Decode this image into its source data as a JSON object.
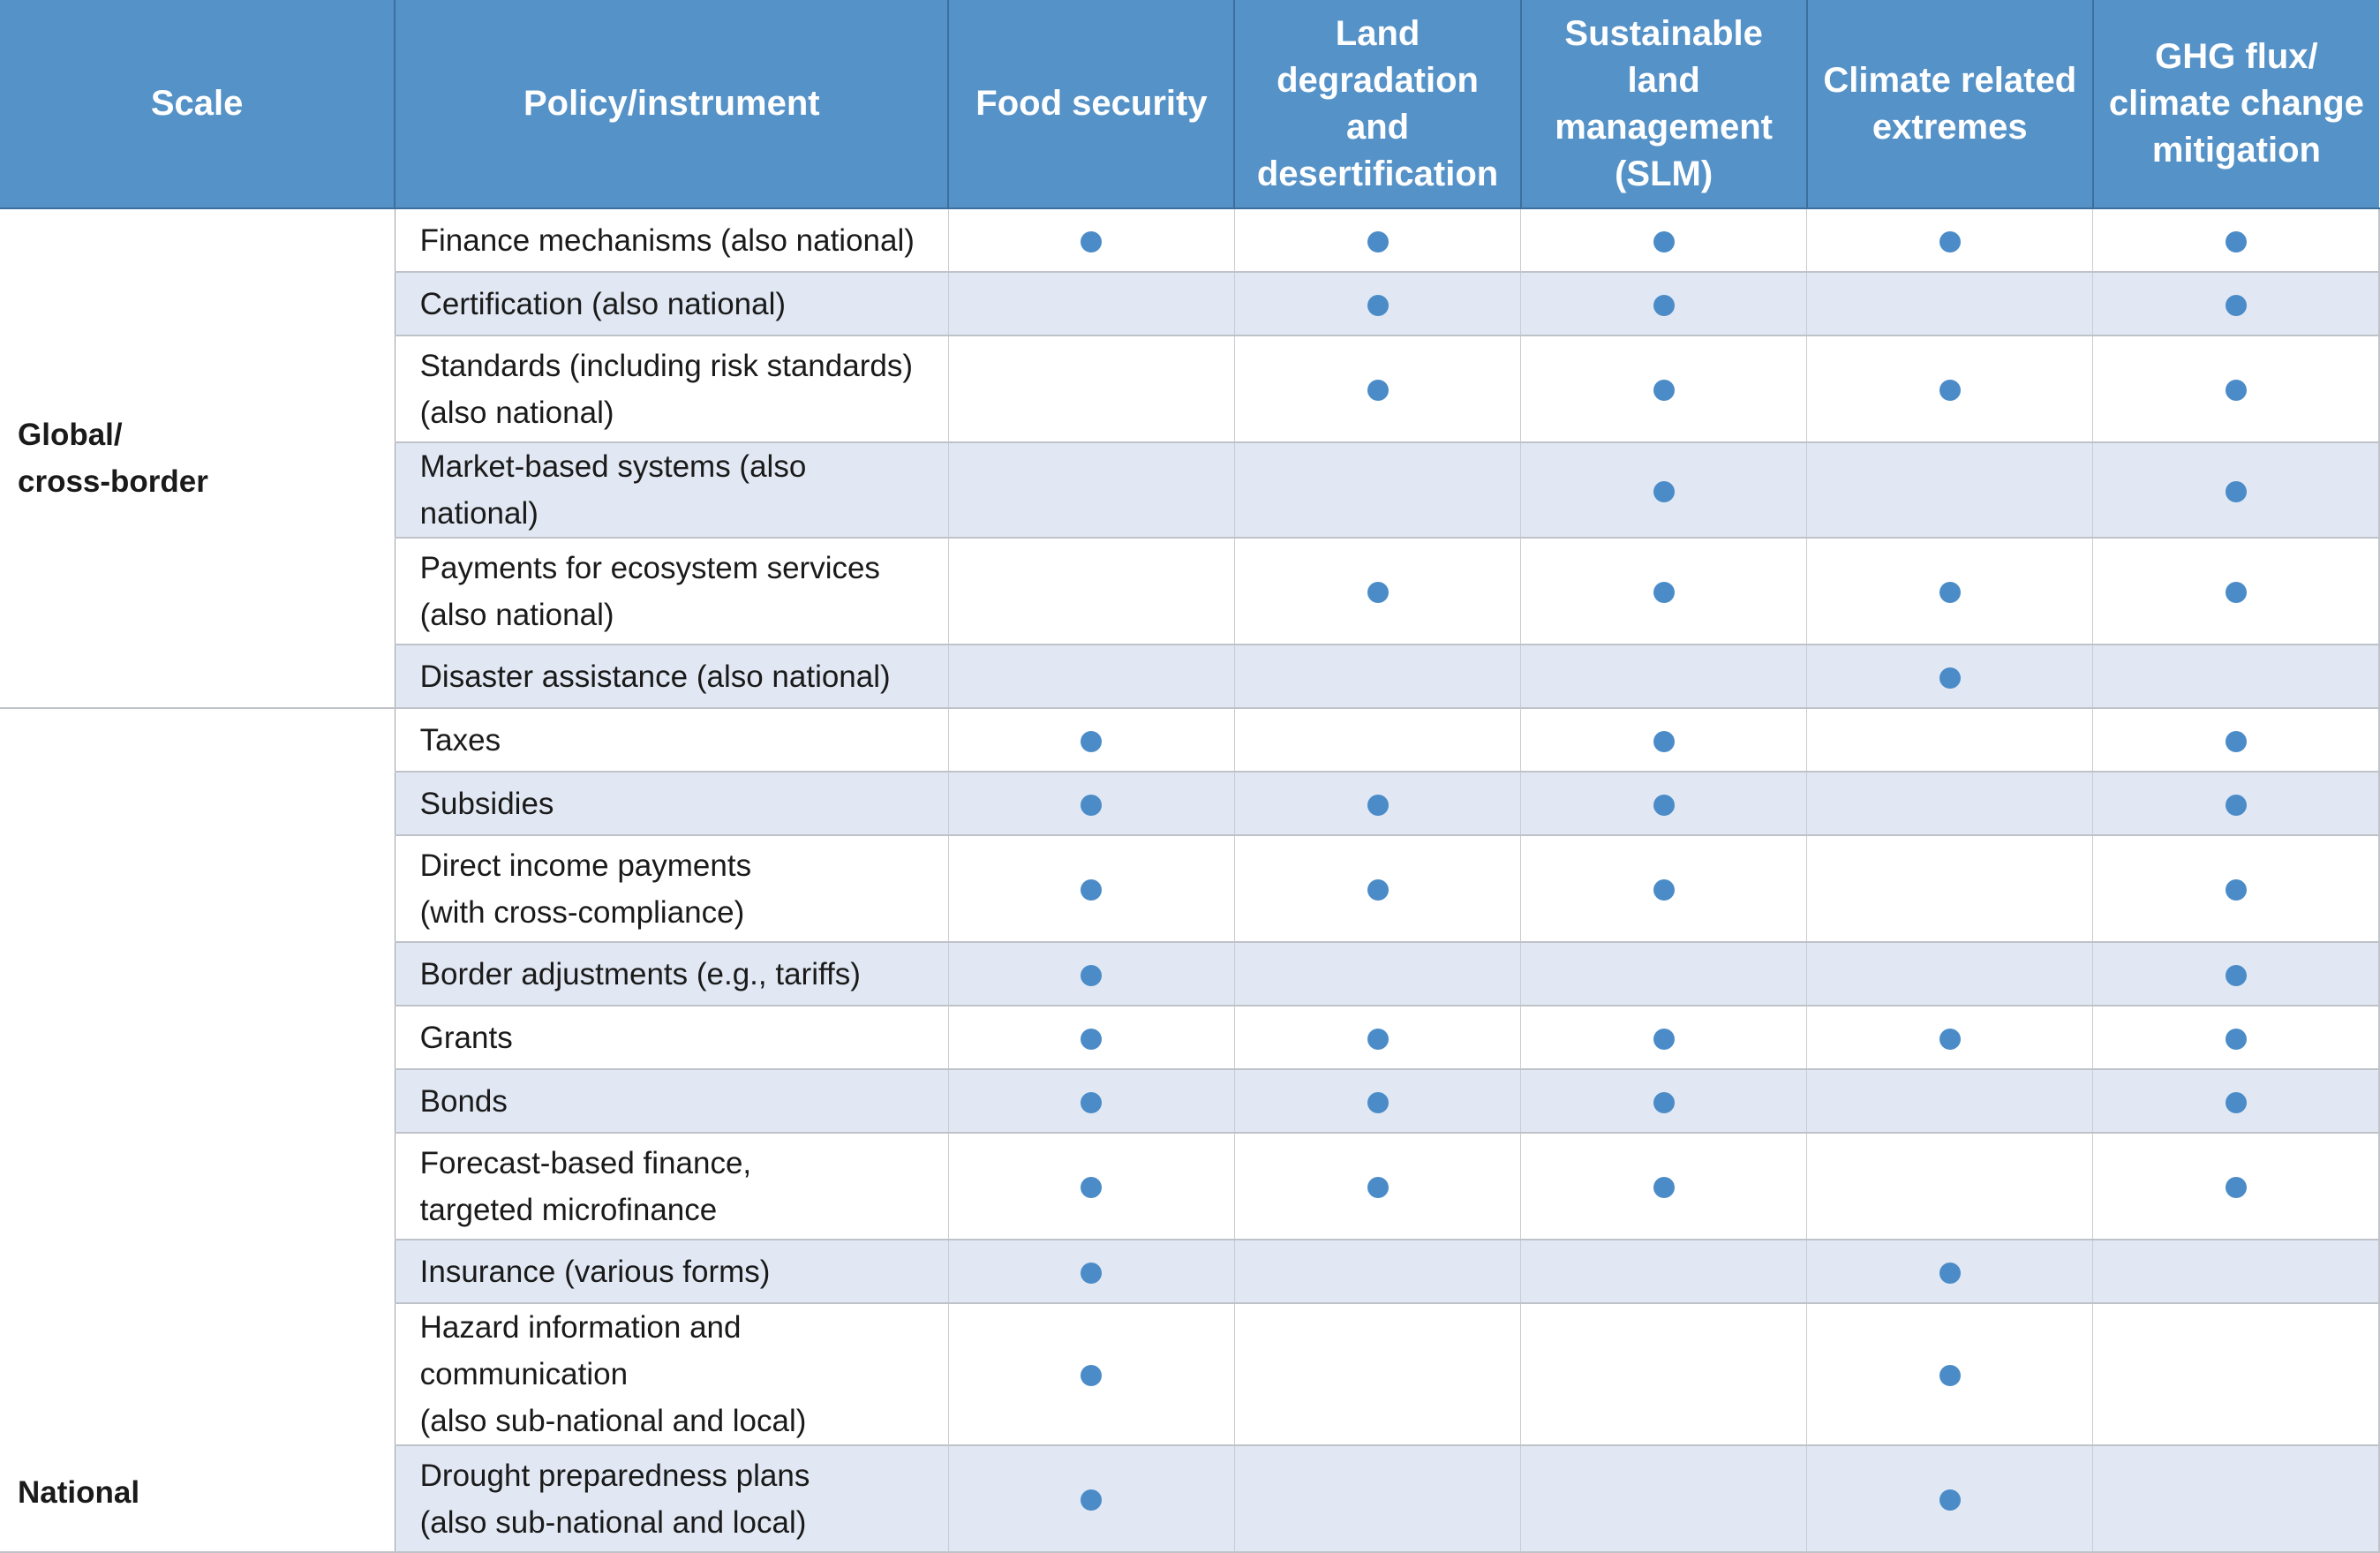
{
  "headers": {
    "scale": "Scale",
    "policy": "Policy/instrument",
    "c1": "Food security",
    "c2": "Land\ndegradation\nand\ndesertification",
    "c3": "Sustainable\nland\nmanagement\n(SLM)",
    "c4": "Climate related\nextremes",
    "c5": "GHG flux/\nclimate change\nmitigation"
  },
  "scales": {
    "global": "Global/\ncross-border",
    "national": "National"
  },
  "rows": [
    {
      "policy": "Finance mechanisms (also national)",
      "marks": [
        true,
        true,
        true,
        true,
        true
      ]
    },
    {
      "policy": "Certification (also national)",
      "marks": [
        false,
        true,
        true,
        false,
        true
      ]
    },
    {
      "policy": "Standards (including risk standards)\n(also national)",
      "marks": [
        false,
        true,
        true,
        true,
        true
      ]
    },
    {
      "policy": "Market-based systems (also national)",
      "marks": [
        false,
        false,
        true,
        false,
        true
      ]
    },
    {
      "policy": "Payments for ecosystem services\n(also national)",
      "marks": [
        false,
        true,
        true,
        true,
        true
      ]
    },
    {
      "policy": "Disaster assistance (also national)",
      "marks": [
        false,
        false,
        false,
        true,
        false
      ]
    },
    {
      "policy": "Taxes",
      "marks": [
        true,
        false,
        true,
        false,
        true
      ]
    },
    {
      "policy": "Subsidies",
      "marks": [
        true,
        true,
        true,
        false,
        true
      ]
    },
    {
      "policy": "Direct income payments\n(with cross-compliance)",
      "marks": [
        true,
        true,
        true,
        false,
        true
      ]
    },
    {
      "policy": "Border adjustments (e.g., tariffs)",
      "marks": [
        true,
        false,
        false,
        false,
        true
      ]
    },
    {
      "policy": "Grants",
      "marks": [
        true,
        true,
        true,
        true,
        true
      ]
    },
    {
      "policy": "Bonds",
      "marks": [
        true,
        true,
        true,
        false,
        true
      ]
    },
    {
      "policy": "Forecast-based finance,\ntargeted microfinance",
      "marks": [
        true,
        true,
        true,
        false,
        true
      ]
    },
    {
      "policy": "Insurance (various forms)",
      "marks": [
        true,
        false,
        false,
        true,
        false
      ]
    },
    {
      "policy": "Hazard information and communication\n(also sub-national and local)",
      "marks": [
        true,
        false,
        false,
        true,
        false
      ]
    },
    {
      "policy": "Drought preparedness plans\n(also sub-national and local)",
      "marks": [
        true,
        false,
        false,
        true,
        false
      ]
    }
  ],
  "colors": {
    "header_bg": "#5592c8",
    "alt_row_bg": "#e1e8f3",
    "dot": "#4b8cc8"
  }
}
